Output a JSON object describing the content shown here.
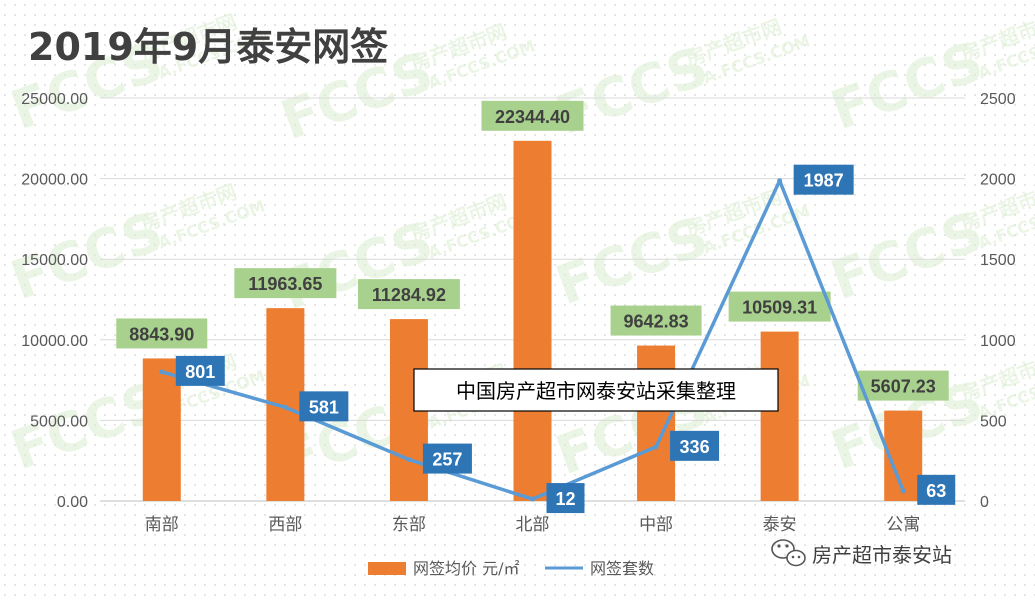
{
  "chart_data": {
    "type": "bar",
    "title": "2019年9月泰安网签",
    "categories": [
      "南部",
      "西部",
      "东部",
      "北部",
      "中部",
      "泰安",
      "公寓"
    ],
    "series": [
      {
        "name": "网签均价 元/㎡",
        "type": "bar",
        "axis": "left",
        "color": "#ED7D31",
        "label_bg": "#A9D18E",
        "values": [
          8843.9,
          11963.65,
          11284.92,
          22344.4,
          9642.83,
          10509.31,
          5607.23
        ],
        "labels": [
          "8843.90",
          "11963.65",
          "11284.92",
          "22344.40",
          "9642.83",
          "10509.31",
          "5607.23"
        ]
      },
      {
        "name": "网签套数",
        "type": "line",
        "axis": "right",
        "color": "#5B9BD5",
        "label_bg": "#2E75B6",
        "values": [
          801,
          581,
          257,
          12,
          336,
          1987,
          63
        ],
        "labels": [
          "801",
          "581",
          "257",
          "12",
          "336",
          "1987",
          "63"
        ]
      }
    ],
    "y_left": {
      "min": 0,
      "max": 25000,
      "ticks": [
        "0.00",
        "5000.00",
        "10000.00",
        "15000.00",
        "20000.00",
        "25000.00"
      ]
    },
    "y_right": {
      "min": 0,
      "max": 2500,
      "ticks": [
        "0",
        "500",
        "1000",
        "1500",
        "2000",
        "2500"
      ]
    },
    "grid": true,
    "legend_position": "bottom",
    "annotation": "中国房产超市网泰安站采集整理",
    "watermark_brand": "房产超市泰安站",
    "watermark_logo": "FCCS",
    "watermark_sub": "房产超市网",
    "watermark_url": "TA.FCCS.COM",
    "icon": "wechat-icon"
  }
}
